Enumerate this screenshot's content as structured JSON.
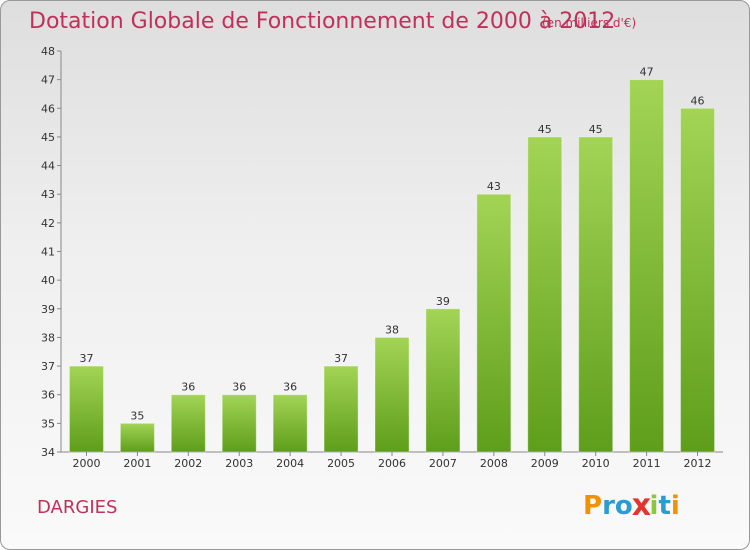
{
  "title": "Dotation Globale de Fonctionnement de 2000 à 2012",
  "unit": "(en milliers d'€)",
  "city": "DARGIES",
  "logo": {
    "text": "Proxiti",
    "colors": [
      "#f39200",
      "#2b9bd6",
      "#2b9bd6",
      "#e3342f",
      "#8cc63f",
      "#2b9bd6",
      "#f39200"
    ]
  },
  "colors": {
    "bar_top": "#a3d455",
    "bar_bottom": "#5e9e1a",
    "accent": "#c0305a"
  },
  "chart_data": {
    "type": "bar",
    "categories": [
      "2000",
      "2001",
      "2002",
      "2003",
      "2004",
      "2005",
      "2006",
      "2007",
      "2008",
      "2009",
      "2010",
      "2011",
      "2012"
    ],
    "values": [
      37,
      35,
      36,
      36,
      36,
      37,
      38,
      39,
      43,
      45,
      45,
      47,
      46
    ],
    "ylim": [
      34,
      48
    ],
    "yticks": [
      34,
      35,
      36,
      37,
      38,
      39,
      40,
      41,
      42,
      43,
      44,
      45,
      46,
      47,
      48
    ],
    "grid": false
  }
}
